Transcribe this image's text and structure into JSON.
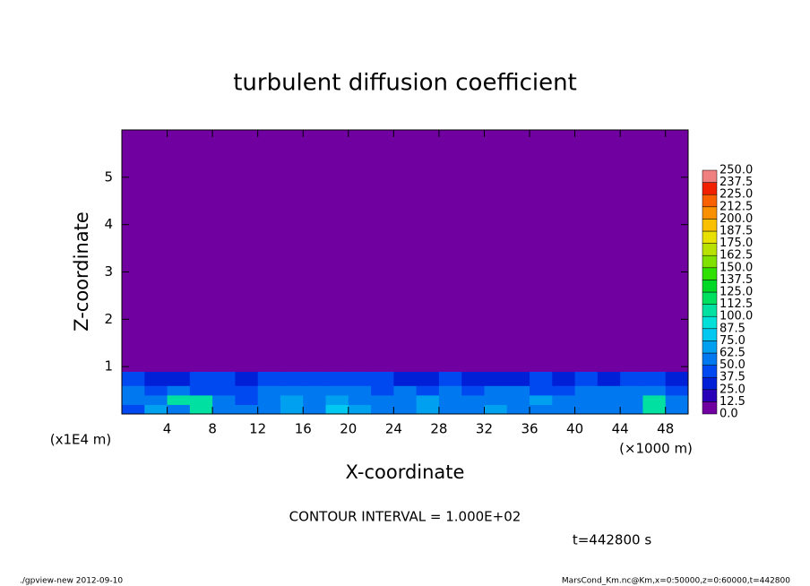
{
  "chart_data": {
    "type": "contour",
    "title": "turbulent diffusion coefficient",
    "xlabel": "X-coordinate",
    "ylabel": "Z-coordinate",
    "xunit": "(×1000 m)",
    "yunit": "(x1E4 m)",
    "xlim": [
      0,
      50
    ],
    "ylim": [
      0,
      6
    ],
    "xticks": [
      4,
      8,
      12,
      16,
      20,
      24,
      28,
      32,
      36,
      40,
      44,
      48
    ],
    "yticks": [
      1,
      2,
      3,
      4,
      5
    ],
    "field": {
      "x_edges": [
        0,
        2,
        4,
        6,
        8,
        10,
        12,
        14,
        16,
        18,
        20,
        22,
        24,
        26,
        28,
        30,
        32,
        34,
        36,
        38,
        40,
        42,
        44,
        46,
        48,
        50
      ],
      "z_edges": [
        0,
        0.2,
        0.4,
        0.6,
        0.9,
        6
      ],
      "values": [
        [
          45,
          70,
          60,
          110,
          55,
          50,
          60,
          70,
          55,
          75,
          65,
          60,
          55,
          70,
          50,
          60,
          65,
          55,
          60,
          55,
          60,
          55,
          60,
          110,
          60
        ],
        [
          60,
          55,
          110,
          105,
          50,
          45,
          55,
          70,
          60,
          70,
          60,
          55,
          55,
          65,
          55,
          50,
          60,
          60,
          65,
          55,
          55,
          55,
          60,
          105,
          55
        ],
        [
          50,
          45,
          50,
          40,
          45,
          45,
          50,
          55,
          50,
          60,
          50,
          45,
          50,
          45,
          50,
          45,
          50,
          55,
          45,
          45,
          50,
          55,
          50,
          60,
          45
        ],
        [
          40,
          35,
          35,
          40,
          40,
          35,
          40,
          45,
          40,
          45,
          40,
          40,
          35,
          35,
          40,
          35,
          30,
          35,
          40,
          35,
          40,
          35,
          40,
          40,
          35
        ],
        [
          0,
          0,
          0,
          0,
          0,
          0,
          0,
          0,
          0,
          0,
          0,
          0,
          0,
          0,
          0,
          0,
          0,
          0,
          0,
          0,
          0,
          0,
          0,
          0,
          0
        ]
      ]
    },
    "colorbar": {
      "levels": [
        {
          "value": 0,
          "label": "0.0"
        },
        {
          "value": 12.5,
          "label": "12.5"
        },
        {
          "value": 25,
          "label": "25.0"
        },
        {
          "value": 37.5,
          "label": "37.5"
        },
        {
          "value": 50,
          "label": "50.0"
        },
        {
          "value": 62.5,
          "label": "62.5"
        },
        {
          "value": 75,
          "label": "75.0"
        },
        {
          "value": 87.5,
          "label": "87.5"
        },
        {
          "value": 100,
          "label": "100.0"
        },
        {
          "value": 112.5,
          "label": "112.5"
        },
        {
          "value": 125,
          "label": "125.0"
        },
        {
          "value": 137.5,
          "label": "137.5"
        },
        {
          "value": 150,
          "label": "150.0"
        },
        {
          "value": 162.5,
          "label": "162.5"
        },
        {
          "value": 175,
          "label": "175.0"
        },
        {
          "value": 187.5,
          "label": "187.5"
        },
        {
          "value": 200,
          "label": "200.0"
        },
        {
          "value": 212.5,
          "label": "212.5"
        },
        {
          "value": 225,
          "label": "225.0"
        },
        {
          "value": 237.5,
          "label": "237.5"
        },
        {
          "value": 250,
          "label": "250.0"
        }
      ],
      "colors": [
        "#7000a0",
        "#2800b8",
        "#0020d8",
        "#0048f0",
        "#0078f0",
        "#00a0f0",
        "#00c8f0",
        "#00e0d8",
        "#00e0a0",
        "#00e060",
        "#00d828",
        "#30e000",
        "#80e000",
        "#b8e000",
        "#e8e000",
        "#f8c000",
        "#f89000",
        "#f86000",
        "#f02000",
        "#f08080"
      ]
    },
    "annotations": [
      "CONTOUR INTERVAL = 1.000E+02",
      "t=442800 s"
    ],
    "footer": [
      "./gpview-new   2012-09-10",
      "MarsCond_Km.nc@Km,x=0:50000,z=0:60000,t=442800"
    ]
  }
}
